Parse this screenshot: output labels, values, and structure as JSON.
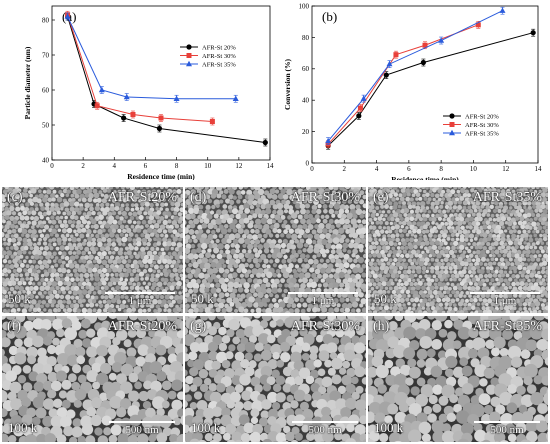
{
  "charts": {
    "a": {
      "panel_label": "(a)",
      "xlabel": "Residence time (min)",
      "ylabel": "Particle diameter (nm)",
      "xticks": [
        "0",
        "2",
        "4",
        "6",
        "8",
        "10",
        "12",
        "14"
      ],
      "yticks": [
        "40",
        "50",
        "60",
        "70",
        "80"
      ],
      "legend": [
        "AFR-St 20%",
        "AFR-St 30%",
        "AFR-St 35%"
      ]
    },
    "b": {
      "panel_label": "(b)",
      "xlabel": "Residence time (min)",
      "ylabel": "Conversion (%)",
      "xticks": [
        "0",
        "2",
        "4",
        "6",
        "8",
        "10",
        "12",
        "14"
      ],
      "yticks": [
        "0",
        "20",
        "40",
        "60",
        "80",
        "100"
      ],
      "legend": [
        "AFR-St 20%",
        "AFR-St 30%",
        "AFR-St 35%"
      ]
    }
  },
  "chart_data": [
    {
      "id": "a",
      "type": "line",
      "title": "",
      "xlabel": "Residence time (min)",
      "ylabel": "Particle diameter (nm)",
      "xlim": [
        0,
        14
      ],
      "ylim": [
        40,
        84
      ],
      "grid": false,
      "legend_position": "top-right",
      "series": [
        {
          "name": "AFR-St 20%",
          "color": "#000000",
          "marker": "circle",
          "x": [
            1.0,
            2.7,
            4.6,
            6.9,
            13.7
          ],
          "y": [
            81.0,
            56.0,
            52.0,
            49.0,
            45.0
          ]
        },
        {
          "name": "AFR-St 30%",
          "color": "#e8403a",
          "marker": "square",
          "x": [
            1.0,
            2.9,
            5.2,
            7.0,
            10.3
          ],
          "y": [
            81.5,
            55.5,
            53.0,
            52.0,
            51.0
          ]
        },
        {
          "name": "AFR-St 35%",
          "color": "#2a5bdc",
          "marker": "triangle",
          "x": [
            1.0,
            3.2,
            4.8,
            8.0,
            11.8
          ],
          "y": [
            81.0,
            60.0,
            58.0,
            57.5,
            57.5
          ]
        }
      ]
    },
    {
      "id": "b",
      "type": "line",
      "title": "",
      "xlabel": "Residence time (min)",
      "ylabel": "Conversion (%)",
      "xlim": [
        0,
        14
      ],
      "ylim": [
        0,
        100
      ],
      "grid": false,
      "legend_position": "bottom-right",
      "series": [
        {
          "name": "AFR-St 20%",
          "color": "#000000",
          "marker": "circle",
          "x": [
            1.0,
            2.9,
            4.6,
            6.9,
            13.7
          ],
          "y": [
            11,
            30,
            56,
            64,
            83
          ]
        },
        {
          "name": "AFR-St 30%",
          "color": "#e8403a",
          "marker": "square",
          "x": [
            1.0,
            3.0,
            5.2,
            7.0,
            10.3
          ],
          "y": [
            12,
            35,
            69,
            75,
            88
          ]
        },
        {
          "name": "AFR-St 35%",
          "color": "#2a5bdc",
          "marker": "triangle",
          "x": [
            1.0,
            3.2,
            4.8,
            8.0,
            11.8
          ],
          "y": [
            14,
            41,
            63,
            78,
            97
          ]
        }
      ]
    }
  ],
  "sem_images": [
    {
      "tag": "(c)",
      "sample": "AFR-St20%",
      "magnification": "50 k",
      "scale": "1 μm"
    },
    {
      "tag": "(d)",
      "sample": "AFR-St30%",
      "magnification": "50 k",
      "scale": "1 μm"
    },
    {
      "tag": "(e)",
      "sample": "AFR-St35%",
      "magnification": "50 k",
      "scale": "1 μm"
    },
    {
      "tag": "(f)",
      "sample": "AFR-St20%",
      "magnification": "100 k",
      "scale": "500 nm"
    },
    {
      "tag": "(g)",
      "sample": "AFR-St30%",
      "magnification": "100 k",
      "scale": "500 nm"
    },
    {
      "tag": "(h)",
      "sample": "AFR-St35%",
      "magnification": "100 k",
      "scale": "500 nm"
    }
  ]
}
